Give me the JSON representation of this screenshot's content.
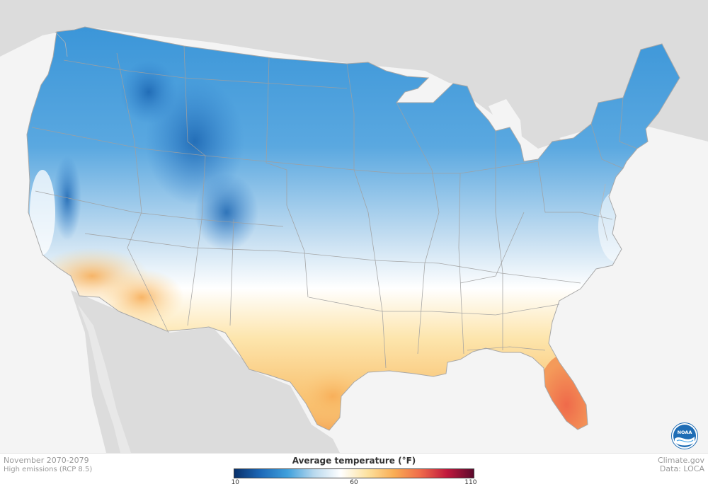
{
  "map": {
    "period": "November 2070-2079",
    "scenario": "High emissions (RCP 8.5)",
    "source_site": "Climate.gov",
    "source_data": "Data: LOCA",
    "legend": {
      "title": "Average temperature (°F)",
      "min_label": "10",
      "mid_label": "60",
      "max_label": "110",
      "colors": [
        "#08306b",
        "#1c69b8",
        "#3fa0dc",
        "#b9d9ee",
        "#ffffff",
        "#fde2a0",
        "#f9ad54",
        "#ef6a4a",
        "#c0183d",
        "#5c0a2c"
      ]
    },
    "logo": {
      "text": "NOAA",
      "color": "#1f6db5"
    },
    "colors": {
      "land_outside": "#dcdcdc",
      "water": "#f4f4f4",
      "borders": "#9e9e9e"
    }
  }
}
